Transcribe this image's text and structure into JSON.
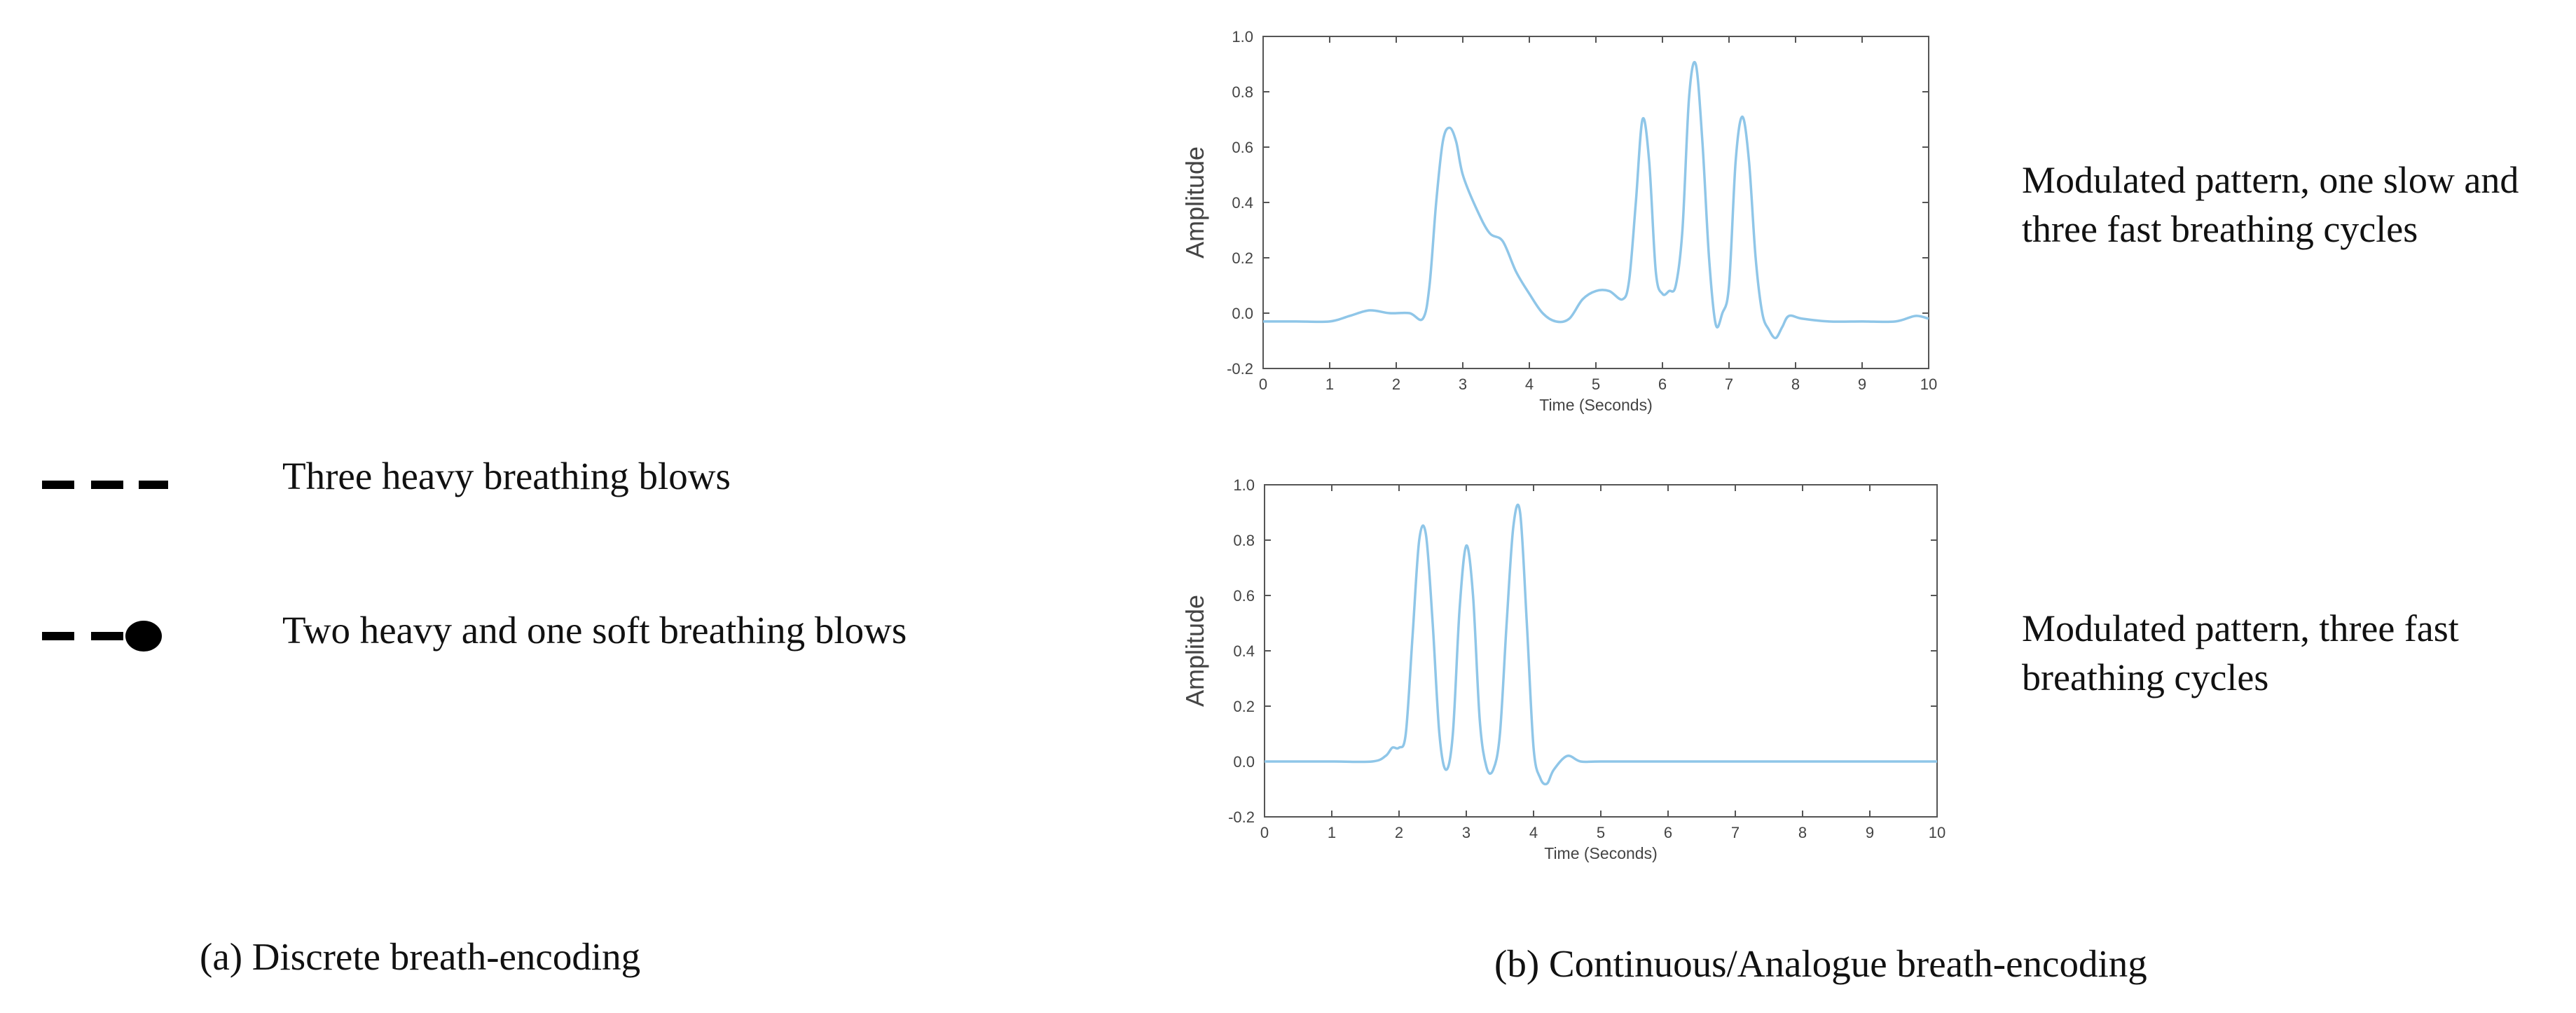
{
  "panel_a": {
    "items": [
      {
        "label": "Three heavy breathing blows",
        "symbol": "dash-dash-dash"
      },
      {
        "label": "Two heavy and one soft breathing blows",
        "symbol": "dash-dash-dot"
      }
    ],
    "caption": "(a) Discrete breath-encoding"
  },
  "panel_b": {
    "descriptions": [
      "Modulated pattern, one slow and three fast breathing cycles",
      "Modulated pattern, three fast breathing cycles"
    ],
    "caption": "(b) Continuous/Analogue breath-encoding"
  },
  "colors": {
    "line": "#8fc6e8",
    "axis": "#555555",
    "symbol": "#000000"
  },
  "chart_data": [
    {
      "type": "line",
      "xlabel": "Time (Seconds)",
      "ylabel": "Amplitude",
      "xlim": [
        0,
        10
      ],
      "ylim": [
        -0.2,
        1.0
      ],
      "xticks": [
        0,
        1,
        2,
        3,
        4,
        5,
        6,
        7,
        8,
        9,
        10
      ],
      "yticks": [
        -0.2,
        0.0,
        0.2,
        0.4,
        0.6,
        0.8,
        1.0
      ],
      "ytick_labels": [
        "-0.2",
        "0.0",
        "0.2",
        "0.4",
        "0.6",
        "0.8",
        "1.0"
      ],
      "grid": false,
      "series": [
        {
          "x": [
            0,
            0.5,
            1.0,
            1.3,
            1.6,
            1.9,
            2.2,
            2.4,
            2.5,
            2.6,
            2.7,
            2.8,
            2.9,
            3.0,
            3.2,
            3.4,
            3.6,
            3.8,
            4.0,
            4.2,
            4.4,
            4.6,
            4.8,
            5.0,
            5.2,
            5.4,
            5.5,
            5.6,
            5.7,
            5.8,
            5.9,
            6.0,
            6.1,
            6.2,
            6.3,
            6.4,
            6.5,
            6.6,
            6.7,
            6.8,
            6.9,
            7.0,
            7.1,
            7.2,
            7.3,
            7.4,
            7.5,
            7.6,
            7.7,
            7.8,
            7.9,
            8.1,
            8.5,
            9.0,
            9.5,
            9.8,
            10.0
          ],
          "y": [
            -0.03,
            -0.03,
            -0.03,
            -0.01,
            0.01,
            0.0,
            0.0,
            -0.02,
            0.1,
            0.4,
            0.62,
            0.67,
            0.62,
            0.5,
            0.38,
            0.29,
            0.26,
            0.15,
            0.07,
            0.0,
            -0.03,
            -0.02,
            0.05,
            0.08,
            0.08,
            0.05,
            0.12,
            0.4,
            0.7,
            0.55,
            0.15,
            0.07,
            0.08,
            0.1,
            0.3,
            0.78,
            0.9,
            0.62,
            0.2,
            -0.04,
            0.0,
            0.1,
            0.55,
            0.71,
            0.55,
            0.2,
            0.0,
            -0.06,
            -0.09,
            -0.05,
            -0.01,
            -0.02,
            -0.03,
            -0.03,
            -0.03,
            -0.01,
            -0.02
          ]
        }
      ]
    },
    {
      "type": "line",
      "xlabel": "Time (Seconds)",
      "ylabel": "Amplitude",
      "xlim": [
        0,
        10
      ],
      "ylim": [
        -0.2,
        1.0
      ],
      "xticks": [
        0,
        1,
        2,
        3,
        4,
        5,
        6,
        7,
        8,
        9,
        10
      ],
      "yticks": [
        -0.2,
        0.0,
        0.2,
        0.4,
        0.6,
        0.8,
        1.0
      ],
      "ytick_labels": [
        "-0.2",
        "0.0",
        "0.2",
        "0.4",
        "0.6",
        "0.8",
        "1.0"
      ],
      "grid": false,
      "series": [
        {
          "x": [
            0,
            1.0,
            1.6,
            1.8,
            1.9,
            2.0,
            2.1,
            2.2,
            2.3,
            2.4,
            2.5,
            2.6,
            2.7,
            2.8,
            2.9,
            3.0,
            3.1,
            3.2,
            3.3,
            3.4,
            3.5,
            3.6,
            3.7,
            3.8,
            3.9,
            4.0,
            4.1,
            4.2,
            4.3,
            4.5,
            4.7,
            5.0,
            6.0,
            8.0,
            10.0
          ],
          "y": [
            0.0,
            0.0,
            0.0,
            0.02,
            0.05,
            0.05,
            0.1,
            0.45,
            0.8,
            0.82,
            0.5,
            0.1,
            -0.03,
            0.1,
            0.55,
            0.78,
            0.6,
            0.15,
            -0.02,
            -0.03,
            0.1,
            0.5,
            0.85,
            0.9,
            0.5,
            0.05,
            -0.06,
            -0.08,
            -0.03,
            0.02,
            0.0,
            0.0,
            0.0,
            0.0,
            0.0
          ]
        }
      ]
    }
  ]
}
